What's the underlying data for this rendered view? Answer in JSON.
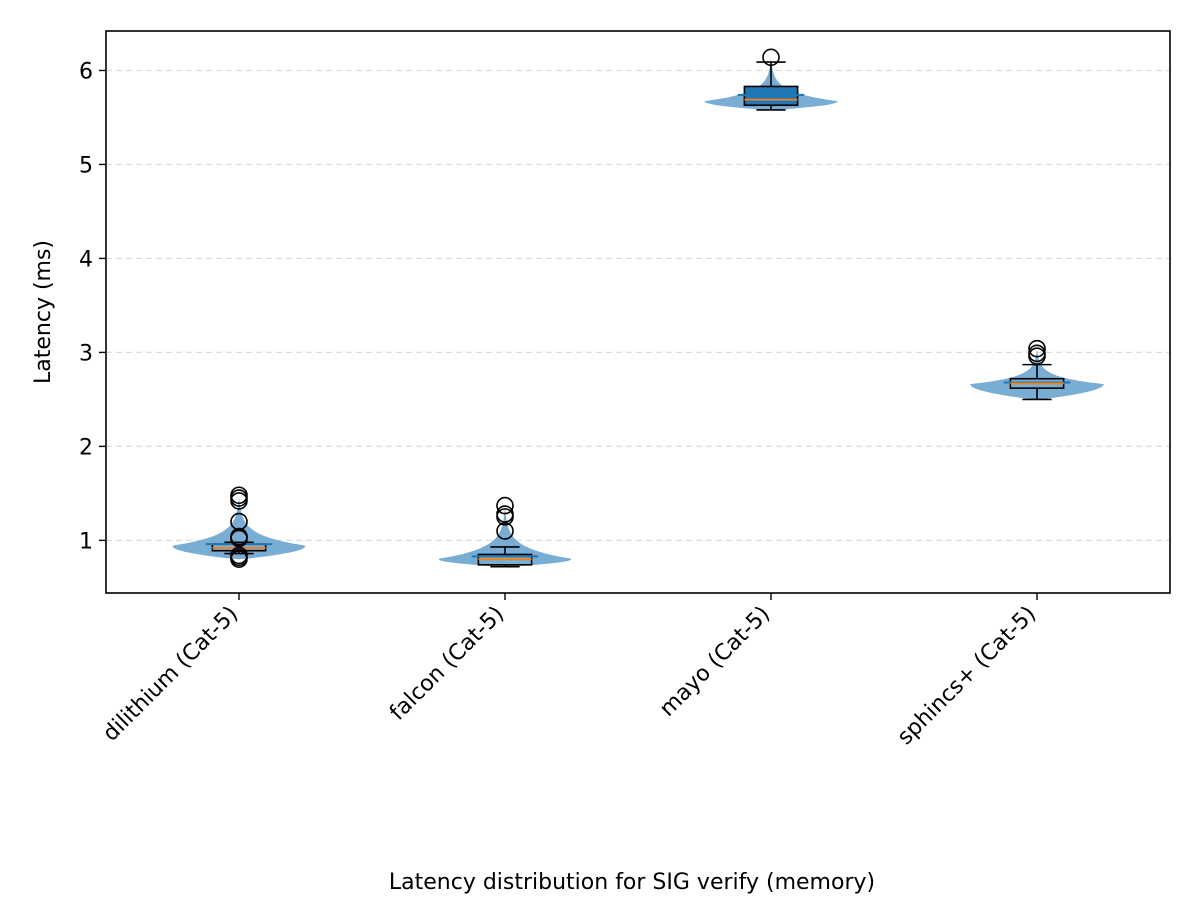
{
  "chart_data": {
    "type": "violin",
    "title": "",
    "xlabel": "Latency distribution for SIG verify (memory)",
    "ylabel": "Latency (ms)",
    "ylim": [
      0.44,
      6.42
    ],
    "yticks": [
      1,
      2,
      3,
      4,
      5,
      6
    ],
    "grid": "y-dashed",
    "colors": {
      "violin": "#7aadd4",
      "box_edge": "#000000",
      "box_fill_mayo": "#1f77b4",
      "median": "#ff7f0e",
      "mean_line": "#1f77b4",
      "grid": "#dddddd"
    },
    "categories": [
      "dilithium (Cat-5)",
      "falcon (Cat-5)",
      "mayo (Cat-5)",
      "sphincs+ (Cat-5)"
    ],
    "distributions": [
      {
        "category": "dilithium (Cat-5)",
        "whisker_low": 0.86,
        "q1": 0.89,
        "median": 0.92,
        "q3": 0.96,
        "whisker_high": 0.98,
        "mean": 0.96,
        "outliers_high": [
          1.02,
          1.03,
          1.04,
          1.2,
          1.42,
          1.45,
          1.48
        ],
        "outliers_low": [
          0.8,
          0.82,
          0.84
        ],
        "violin_min": 0.8,
        "violin_max": 1.48,
        "violin_peak": 0.94
      },
      {
        "category": "falcon (Cat-5)",
        "whisker_low": 0.72,
        "q1": 0.74,
        "median": 0.8,
        "q3": 0.85,
        "whisker_high": 0.93,
        "mean": 0.83,
        "outliers_high": [
          1.1,
          1.25,
          1.28,
          1.37
        ],
        "outliers_low": [],
        "violin_min": 0.72,
        "violin_max": 1.37,
        "violin_peak": 0.8
      },
      {
        "category": "mayo (Cat-5)",
        "whisker_low": 5.58,
        "q1": 5.63,
        "median": 5.69,
        "q3": 5.83,
        "whisker_high": 6.09,
        "mean": 5.74,
        "outliers_high": [
          6.14
        ],
        "outliers_low": [],
        "violin_min": 5.58,
        "violin_max": 6.14,
        "violin_peak": 5.67
      },
      {
        "category": "sphincs+ (Cat-5)",
        "whisker_low": 2.5,
        "q1": 2.62,
        "median": 2.67,
        "q3": 2.72,
        "whisker_high": 2.87,
        "mean": 2.68,
        "outliers_high": [
          2.96,
          2.99,
          3.04
        ],
        "outliers_low": [],
        "violin_min": 2.5,
        "violin_max": 3.04,
        "violin_peak": 2.66
      }
    ]
  }
}
